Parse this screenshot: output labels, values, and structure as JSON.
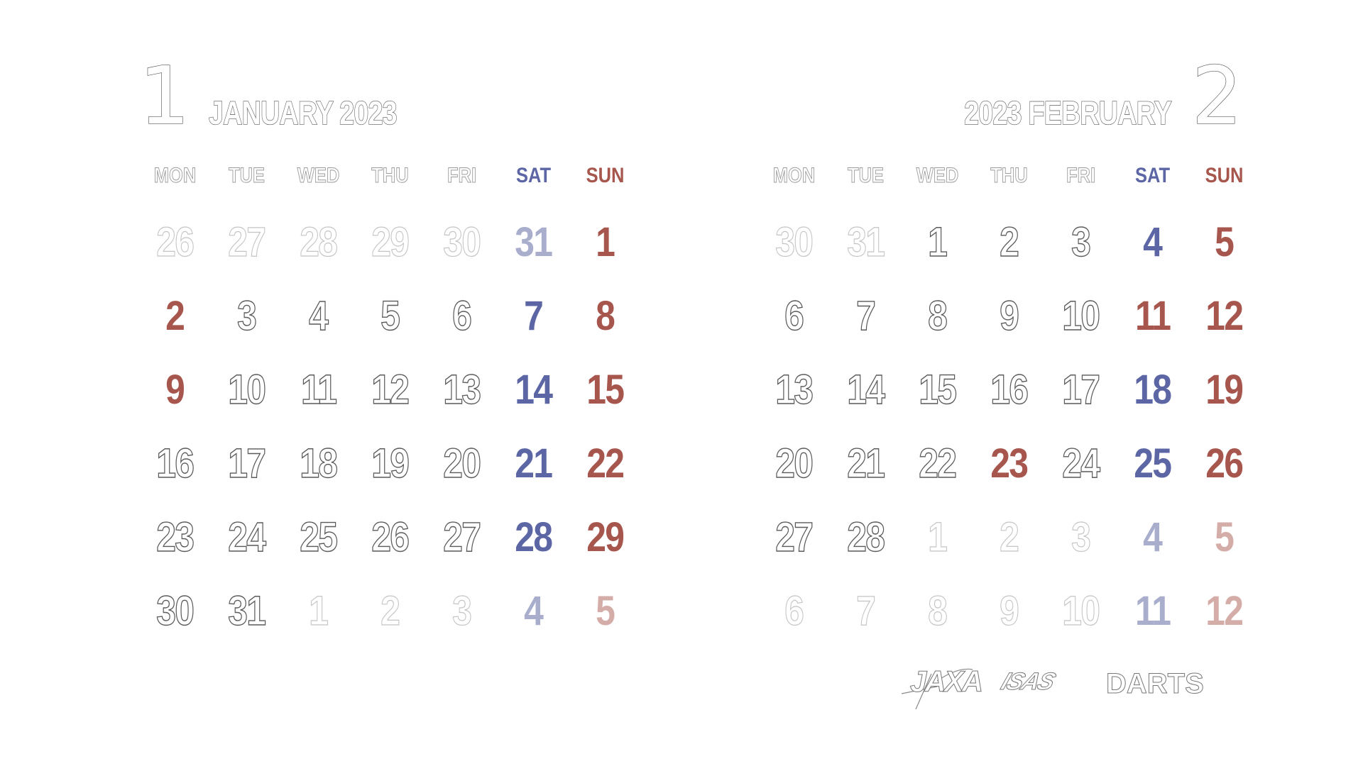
{
  "january": {
    "number": "1",
    "title": "JANUARY 2023",
    "weekdays": [
      "MON",
      "TUE",
      "WED",
      "THU",
      "FRI",
      "SAT",
      "SUN"
    ],
    "weeks": [
      [
        {
          "d": "26",
          "t": "plain",
          "out": true
        },
        {
          "d": "27",
          "t": "plain",
          "out": true
        },
        {
          "d": "28",
          "t": "plain",
          "out": true
        },
        {
          "d": "29",
          "t": "plain",
          "out": true
        },
        {
          "d": "30",
          "t": "plain",
          "out": true
        },
        {
          "d": "31",
          "t": "sat",
          "out": true
        },
        {
          "d": "1",
          "t": "sun",
          "out": false
        }
      ],
      [
        {
          "d": "2",
          "t": "sun",
          "out": false
        },
        {
          "d": "3",
          "t": "plain",
          "out": false
        },
        {
          "d": "4",
          "t": "plain",
          "out": false
        },
        {
          "d": "5",
          "t": "plain",
          "out": false
        },
        {
          "d": "6",
          "t": "plain",
          "out": false
        },
        {
          "d": "7",
          "t": "sat",
          "out": false
        },
        {
          "d": "8",
          "t": "sun",
          "out": false
        }
      ],
      [
        {
          "d": "9",
          "t": "sun",
          "out": false
        },
        {
          "d": "10",
          "t": "plain",
          "out": false
        },
        {
          "d": "11",
          "t": "plain",
          "out": false
        },
        {
          "d": "12",
          "t": "plain",
          "out": false
        },
        {
          "d": "13",
          "t": "plain",
          "out": false
        },
        {
          "d": "14",
          "t": "sat",
          "out": false
        },
        {
          "d": "15",
          "t": "sun",
          "out": false
        }
      ],
      [
        {
          "d": "16",
          "t": "plain",
          "out": false
        },
        {
          "d": "17",
          "t": "plain",
          "out": false
        },
        {
          "d": "18",
          "t": "plain",
          "out": false
        },
        {
          "d": "19",
          "t": "plain",
          "out": false
        },
        {
          "d": "20",
          "t": "plain",
          "out": false
        },
        {
          "d": "21",
          "t": "sat",
          "out": false
        },
        {
          "d": "22",
          "t": "sun",
          "out": false
        }
      ],
      [
        {
          "d": "23",
          "t": "plain",
          "out": false
        },
        {
          "d": "24",
          "t": "plain",
          "out": false
        },
        {
          "d": "25",
          "t": "plain",
          "out": false
        },
        {
          "d": "26",
          "t": "plain",
          "out": false
        },
        {
          "d": "27",
          "t": "plain",
          "out": false
        },
        {
          "d": "28",
          "t": "sat",
          "out": false
        },
        {
          "d": "29",
          "t": "sun",
          "out": false
        }
      ],
      [
        {
          "d": "30",
          "t": "plain",
          "out": false
        },
        {
          "d": "31",
          "t": "plain",
          "out": false
        },
        {
          "d": "1",
          "t": "plain",
          "out": true
        },
        {
          "d": "2",
          "t": "plain",
          "out": true
        },
        {
          "d": "3",
          "t": "plain",
          "out": true
        },
        {
          "d": "4",
          "t": "sat",
          "out": true
        },
        {
          "d": "5",
          "t": "sun",
          "out": true
        }
      ]
    ]
  },
  "february": {
    "number": "2",
    "title": "2023 FEBRUARY",
    "weekdays": [
      "MON",
      "TUE",
      "WED",
      "THU",
      "FRI",
      "SAT",
      "SUN"
    ],
    "weeks": [
      [
        {
          "d": "30",
          "t": "plain",
          "out": true
        },
        {
          "d": "31",
          "t": "plain",
          "out": true
        },
        {
          "d": "1",
          "t": "plain",
          "out": false
        },
        {
          "d": "2",
          "t": "plain",
          "out": false
        },
        {
          "d": "3",
          "t": "plain",
          "out": false
        },
        {
          "d": "4",
          "t": "sat",
          "out": false
        },
        {
          "d": "5",
          "t": "sun",
          "out": false
        }
      ],
      [
        {
          "d": "6",
          "t": "plain",
          "out": false
        },
        {
          "d": "7",
          "t": "plain",
          "out": false
        },
        {
          "d": "8",
          "t": "plain",
          "out": false
        },
        {
          "d": "9",
          "t": "plain",
          "out": false
        },
        {
          "d": "10",
          "t": "plain",
          "out": false
        },
        {
          "d": "11",
          "t": "sun",
          "out": false
        },
        {
          "d": "12",
          "t": "sun",
          "out": false
        }
      ],
      [
        {
          "d": "13",
          "t": "plain",
          "out": false
        },
        {
          "d": "14",
          "t": "plain",
          "out": false
        },
        {
          "d": "15",
          "t": "plain",
          "out": false
        },
        {
          "d": "16",
          "t": "plain",
          "out": false
        },
        {
          "d": "17",
          "t": "plain",
          "out": false
        },
        {
          "d": "18",
          "t": "sat",
          "out": false
        },
        {
          "d": "19",
          "t": "sun",
          "out": false
        }
      ],
      [
        {
          "d": "20",
          "t": "plain",
          "out": false
        },
        {
          "d": "21",
          "t": "plain",
          "out": false
        },
        {
          "d": "22",
          "t": "plain",
          "out": false
        },
        {
          "d": "23",
          "t": "sun",
          "out": false
        },
        {
          "d": "24",
          "t": "plain",
          "out": false
        },
        {
          "d": "25",
          "t": "sat",
          "out": false
        },
        {
          "d": "26",
          "t": "sun",
          "out": false
        }
      ],
      [
        {
          "d": "27",
          "t": "plain",
          "out": false
        },
        {
          "d": "28",
          "t": "plain",
          "out": false
        },
        {
          "d": "1",
          "t": "plain",
          "out": true
        },
        {
          "d": "2",
          "t": "plain",
          "out": true
        },
        {
          "d": "3",
          "t": "plain",
          "out": true
        },
        {
          "d": "4",
          "t": "sat",
          "out": true
        },
        {
          "d": "5",
          "t": "sun",
          "out": true
        }
      ],
      [
        {
          "d": "6",
          "t": "plain",
          "out": true
        },
        {
          "d": "7",
          "t": "plain",
          "out": true
        },
        {
          "d": "8",
          "t": "plain",
          "out": true
        },
        {
          "d": "9",
          "t": "plain",
          "out": true
        },
        {
          "d": "10",
          "t": "plain",
          "out": true
        },
        {
          "d": "11",
          "t": "sat",
          "out": true
        },
        {
          "d": "12",
          "t": "sun",
          "out": true
        }
      ]
    ]
  },
  "logos": {
    "jaxa": "JAXA",
    "isas": "ISAS",
    "darts": "DARTS"
  },
  "colors": {
    "saturday": "#5c66a4",
    "sunday_holiday": "#a7564d",
    "outline": "#5a5a5a",
    "background": "#ffffff"
  }
}
